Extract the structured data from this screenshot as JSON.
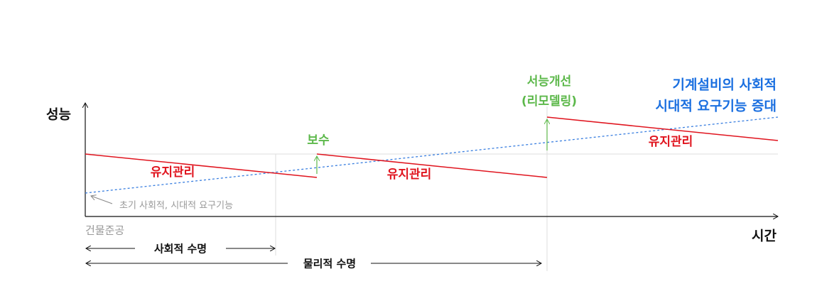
{
  "axes": {
    "y_label": "성능",
    "x_label": "시간"
  },
  "labels": {
    "maintenance": [
      "유지관리",
      "유지관리",
      "유지관리"
    ],
    "repair": "보수",
    "remodel": [
      "서능개선",
      "(리모델링)"
    ],
    "demand": [
      "기계설비의 사회적",
      "시대적 요구기능 증대"
    ],
    "initial": "초기 사회적, 시대적 요구기능",
    "completion": "건물준공",
    "social_life": "사회적 수명",
    "physical_life": "물리적 수명"
  }
}
